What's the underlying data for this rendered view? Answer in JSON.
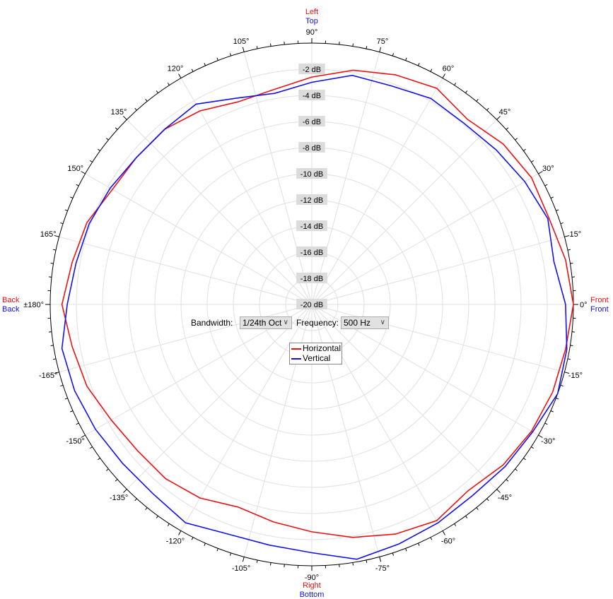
{
  "chart_data": {
    "type": "polar-line",
    "radial_axis": {
      "min_db": -20,
      "max_db": 0,
      "step_db": 2,
      "unit": "dB",
      "tick_labels": [
        "-2 dB",
        "-4 dB",
        "-6 dB",
        "-8 dB",
        "-10 dB",
        "-12 dB",
        "-14 dB",
        "-16 dB",
        "-18 dB",
        "-20 dB"
      ]
    },
    "angular_axis": {
      "major_step_deg": 15,
      "minor_step_deg": 3,
      "tick_labels": [
        {
          "deg": 0,
          "label": "0°"
        },
        {
          "deg": 15,
          "label": "15°"
        },
        {
          "deg": 30,
          "label": "30°"
        },
        {
          "deg": 45,
          "label": "45°"
        },
        {
          "deg": 60,
          "label": "60°"
        },
        {
          "deg": 75,
          "label": "75°"
        },
        {
          "deg": 90,
          "label": "90°"
        },
        {
          "deg": 105,
          "label": "105°"
        },
        {
          "deg": 120,
          "label": "120°"
        },
        {
          "deg": 135,
          "label": "135°"
        },
        {
          "deg": 150,
          "label": "150°"
        },
        {
          "deg": 165,
          "label": "165°"
        },
        {
          "deg": 180,
          "label": "±180°"
        },
        {
          "deg": -165,
          "label": "-165°"
        },
        {
          "deg": -150,
          "label": "-150°"
        },
        {
          "deg": -135,
          "label": "-135°"
        },
        {
          "deg": -120,
          "label": "-120°"
        },
        {
          "deg": -105,
          "label": "-105°"
        },
        {
          "deg": -90,
          "label": "-90°"
        },
        {
          "deg": -75,
          "label": "-75°"
        },
        {
          "deg": -60,
          "label": "-60°"
        },
        {
          "deg": -45,
          "label": "-45°"
        },
        {
          "deg": -30,
          "label": "-30°"
        },
        {
          "deg": -15,
          "label": "-15°"
        }
      ]
    },
    "direction_labels": {
      "top": {
        "horizontal": "Left",
        "vertical": "Top"
      },
      "bottom": {
        "horizontal": "Right",
        "vertical": "Bottom"
      },
      "right": {
        "horizontal": "Front",
        "vertical": "Front"
      },
      "left": {
        "horizontal": "Back",
        "vertical": "Back"
      }
    },
    "grid": true,
    "legend_position": "center",
    "angles_deg": [
      0,
      10,
      20,
      30,
      40,
      50,
      60,
      70,
      80,
      90,
      100,
      110,
      120,
      130,
      140,
      150,
      160,
      170,
      180,
      -170,
      -160,
      -150,
      -140,
      -130,
      -120,
      -110,
      -100,
      -90,
      -80,
      -70,
      -60,
      -50,
      -40,
      -30,
      -20,
      -10
    ],
    "series": [
      {
        "name": "Horizontal",
        "color": "#ee1111",
        "values": [
          0,
          -0.3,
          -0.7,
          -0.6,
          -0.9,
          -1.5,
          -0.9,
          -1.3,
          -1.8,
          -2.6,
          -3.3,
          -3.5,
          -2.9,
          -2.5,
          -2.5,
          -2.4,
          -1.7,
          -1.4,
          -0.9,
          -1.4,
          -1.7,
          -2.3,
          -2.6,
          -2.6,
          -2.9,
          -3.5,
          -3.1,
          -2.6,
          -1.9,
          -1.3,
          -0.9,
          -1.4,
          -0.9,
          -0.6,
          -0.4,
          -0.3
        ]
      },
      {
        "name": "Vertical",
        "color": "#1111ee",
        "values": [
          -0.6,
          -1.2,
          -0.8,
          -1.2,
          -1.6,
          -1.9,
          -1.8,
          -2.2,
          -2.2,
          -3.0,
          -3.6,
          -3.2,
          -2.3,
          -2.5,
          -2.5,
          -2.2,
          -1.9,
          -1.7,
          -1.3,
          -0.6,
          -0.7,
          -0.9,
          -1.1,
          -1.1,
          -0.7,
          -1.3,
          -1.3,
          -1.0,
          -0.2,
          -0.5,
          -0.7,
          -0.9,
          -0.7,
          -0.5,
          0,
          -0.2
        ]
      }
    ]
  },
  "controls": {
    "bandwidth_label": "Bandwidth:",
    "bandwidth_value": "1/24th Oct",
    "frequency_label": "Frequency:",
    "frequency_value": "500 Hz",
    "chevron_icon": "chevron-down-icon"
  }
}
